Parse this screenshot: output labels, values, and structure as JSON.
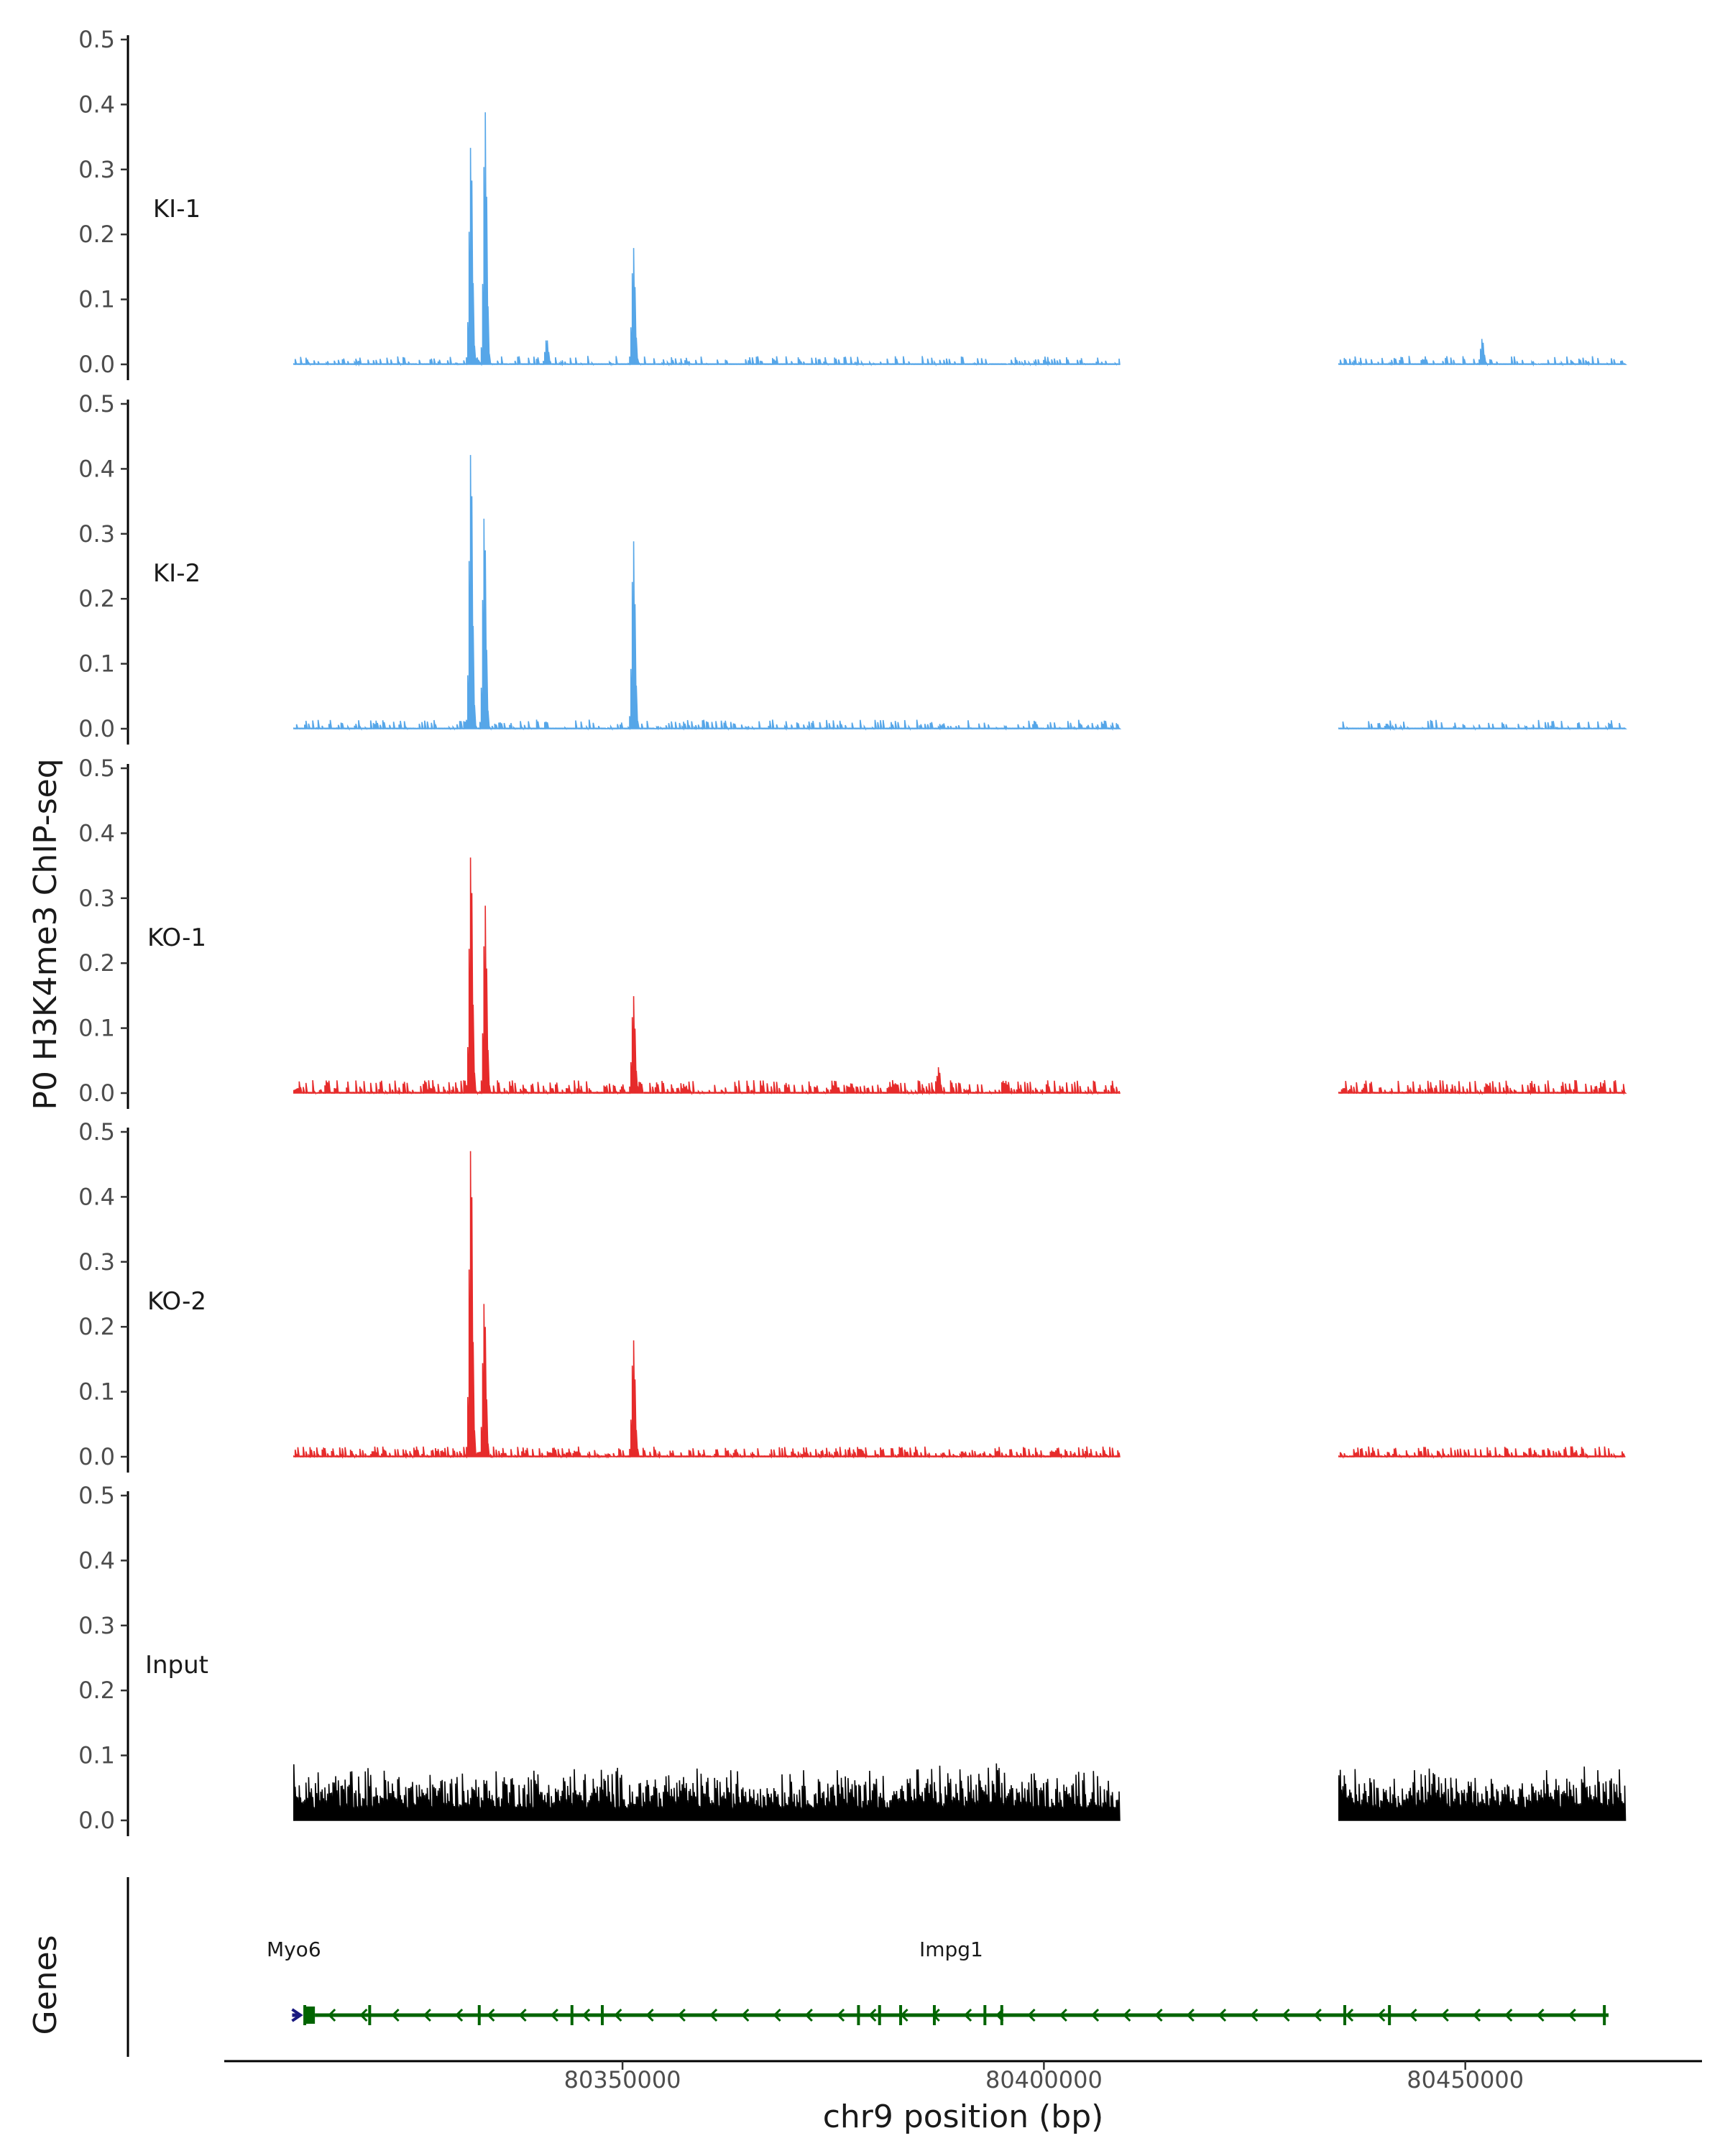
{
  "chart_data": {
    "type": "area",
    "ylabel": "P0 H3K4me3 ChIP-seq",
    "genes_label": "Genes",
    "xlabel": "chr9 position (bp)",
    "ylim": [
      0,
      0.5
    ],
    "xlim": [
      80303000,
      80478000
    ],
    "yticks": [
      "0.0",
      "0.1",
      "0.2",
      "0.3",
      "0.4",
      "0.5"
    ],
    "xticks": [
      {
        "value": 80350000,
        "label": "80350000"
      },
      {
        "value": 80400000,
        "label": "80400000"
      },
      {
        "value": 80450000,
        "label": "80450000"
      }
    ],
    "coverage_segments": [
      [
        80311000,
        80409000
      ],
      [
        80435000,
        80469000
      ]
    ],
    "tracks": [
      {
        "label": "KI-1",
        "color": "#56a6e8",
        "noise": 0.013,
        "sparse": true,
        "peaks": [
          {
            "x": 80332000,
            "y": 0.34
          },
          {
            "x": 80333700,
            "y": 0.39
          },
          {
            "x": 80351300,
            "y": 0.18
          },
          {
            "x": 80341000,
            "y": 0.04
          },
          {
            "x": 80452000,
            "y": 0.04
          }
        ]
      },
      {
        "label": "KI-2",
        "color": "#56a6e8",
        "noise": 0.014,
        "sparse": true,
        "peaks": [
          {
            "x": 80332000,
            "y": 0.43
          },
          {
            "x": 80333600,
            "y": 0.33
          },
          {
            "x": 80351300,
            "y": 0.29
          }
        ]
      },
      {
        "label": "KO-1",
        "color": "#e62b2b",
        "noise": 0.02,
        "sparse": false,
        "peaks": [
          {
            "x": 80332000,
            "y": 0.37
          },
          {
            "x": 80333700,
            "y": 0.29
          },
          {
            "x": 80351300,
            "y": 0.15
          },
          {
            "x": 80387500,
            "y": 0.04
          }
        ]
      },
      {
        "label": "KO-2",
        "color": "#e62b2b",
        "noise": 0.016,
        "sparse": false,
        "peaks": [
          {
            "x": 80332000,
            "y": 0.48
          },
          {
            "x": 80333600,
            "y": 0.24
          },
          {
            "x": 80351300,
            "y": 0.18
          }
        ]
      },
      {
        "label": "Input",
        "color": "#000000",
        "noise": 0.07,
        "sparse": false,
        "dense": true,
        "peaks": []
      }
    ],
    "genes": [
      {
        "name": "Myo6",
        "strand": "+",
        "color": "#1a1a80",
        "start": 80310800,
        "end": 80311800,
        "label_x": 80311000
      },
      {
        "name": "Impg1",
        "strand": "-",
        "color": "#006400",
        "start": 80313500,
        "end": 80467000,
        "label_x": 80389000
      }
    ]
  }
}
